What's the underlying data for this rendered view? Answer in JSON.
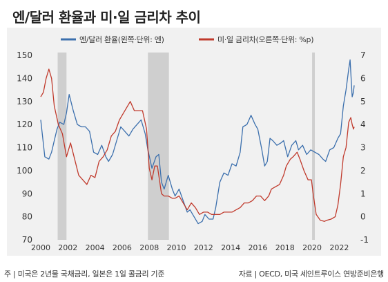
{
  "title": "엔/달러 환율과 미·일 금리차 추이",
  "footer": {
    "note": "주 | 미국은 2년물 국채금리, 일본은 1일 콜금리 기준",
    "source": "자료 | OECD, 미국 세인트루이스 연방준비은행"
  },
  "chart_data": {
    "type": "line",
    "legend_placement": "top",
    "xlabel": "",
    "grid": false,
    "x_ticks": [
      "2000",
      "2002",
      "2004",
      "2006",
      "2008",
      "2010",
      "2012",
      "2014",
      "2016",
      "2018",
      "2020",
      "2022"
    ],
    "x_range": [
      1999.9,
      2023.1
    ],
    "y_left": {
      "ticks": [
        "150",
        "140",
        "130",
        "120",
        "110",
        "100",
        "90",
        "80",
        "70"
      ],
      "range": [
        70,
        150
      ]
    },
    "y_right": {
      "ticks": [
        "7",
        "6",
        "5",
        "4",
        "3",
        "2",
        "1",
        "0",
        "-1"
      ],
      "range": [
        -1,
        7
      ]
    },
    "recessions": [
      [
        2001.25,
        2001.9
      ],
      [
        2007.9,
        2009.45
      ],
      [
        2020.0,
        2020.2
      ]
    ],
    "series": [
      {
        "name": "엔/달러 환율(왼쪽·단위: 엔)",
        "axis": "left",
        "color": "#3b6fad",
        "points": [
          [
            2000.0,
            122
          ],
          [
            2000.3,
            106
          ],
          [
            2000.6,
            105
          ],
          [
            2000.8,
            108
          ],
          [
            2001.0,
            113
          ],
          [
            2001.2,
            118
          ],
          [
            2001.4,
            121
          ],
          [
            2001.7,
            120
          ],
          [
            2001.9,
            125
          ],
          [
            2002.1,
            133
          ],
          [
            2002.4,
            126
          ],
          [
            2002.7,
            120
          ],
          [
            2003.0,
            119
          ],
          [
            2003.3,
            119
          ],
          [
            2003.6,
            117
          ],
          [
            2003.9,
            108
          ],
          [
            2004.2,
            107
          ],
          [
            2004.5,
            111
          ],
          [
            2004.8,
            106
          ],
          [
            2005.0,
            104
          ],
          [
            2005.3,
            107
          ],
          [
            2005.6,
            113
          ],
          [
            2005.9,
            119
          ],
          [
            2006.2,
            117
          ],
          [
            2006.5,
            115
          ],
          [
            2006.8,
            118
          ],
          [
            2007.1,
            120
          ],
          [
            2007.4,
            122
          ],
          [
            2007.7,
            116
          ],
          [
            2007.9,
            109
          ],
          [
            2008.2,
            101
          ],
          [
            2008.5,
            106
          ],
          [
            2008.7,
            107
          ],
          [
            2008.9,
            95
          ],
          [
            2009.1,
            92
          ],
          [
            2009.4,
            98
          ],
          [
            2009.7,
            92
          ],
          [
            2009.9,
            89
          ],
          [
            2010.2,
            92
          ],
          [
            2010.5,
            87
          ],
          [
            2010.8,
            82
          ],
          [
            2011.0,
            83
          ],
          [
            2011.3,
            80
          ],
          [
            2011.6,
            77
          ],
          [
            2011.9,
            78
          ],
          [
            2012.1,
            81
          ],
          [
            2012.4,
            79
          ],
          [
            2012.7,
            79
          ],
          [
            2012.9,
            84
          ],
          [
            2013.2,
            95
          ],
          [
            2013.5,
            99
          ],
          [
            2013.8,
            98
          ],
          [
            2014.1,
            103
          ],
          [
            2014.4,
            102
          ],
          [
            2014.7,
            108
          ],
          [
            2014.9,
            119
          ],
          [
            2015.2,
            120
          ],
          [
            2015.5,
            124
          ],
          [
            2015.8,
            120
          ],
          [
            2016.0,
            118
          ],
          [
            2016.3,
            109
          ],
          [
            2016.5,
            102
          ],
          [
            2016.7,
            104
          ],
          [
            2016.9,
            114
          ],
          [
            2017.1,
            113
          ],
          [
            2017.4,
            111
          ],
          [
            2017.7,
            112
          ],
          [
            2017.9,
            113
          ],
          [
            2018.2,
            106
          ],
          [
            2018.5,
            111
          ],
          [
            2018.8,
            113
          ],
          [
            2019.0,
            109
          ],
          [
            2019.3,
            111
          ],
          [
            2019.6,
            107
          ],
          [
            2019.9,
            109
          ],
          [
            2020.2,
            108
          ],
          [
            2020.5,
            107
          ],
          [
            2020.8,
            105
          ],
          [
            2021.0,
            104
          ],
          [
            2021.3,
            109
          ],
          [
            2021.6,
            110
          ],
          [
            2021.9,
            114
          ],
          [
            2022.1,
            116
          ],
          [
            2022.3,
            128
          ],
          [
            2022.5,
            135
          ],
          [
            2022.7,
            144
          ],
          [
            2022.8,
            148
          ],
          [
            2022.95,
            132
          ],
          [
            2023.05,
            134
          ],
          [
            2023.1,
            137
          ]
        ]
      },
      {
        "name": "미·일 금리차(오른쪽·단위: %p)",
        "axis": "right",
        "color": "#c0392b",
        "points": [
          [
            2000.0,
            5.2
          ],
          [
            2000.2,
            5.4
          ],
          [
            2000.4,
            6.0
          ],
          [
            2000.6,
            6.4
          ],
          [
            2000.8,
            6.0
          ],
          [
            2001.0,
            4.8
          ],
          [
            2001.3,
            4.0
          ],
          [
            2001.6,
            3.6
          ],
          [
            2001.9,
            2.6
          ],
          [
            2002.2,
            3.2
          ],
          [
            2002.5,
            2.5
          ],
          [
            2002.8,
            1.8
          ],
          [
            2003.1,
            1.6
          ],
          [
            2003.4,
            1.4
          ],
          [
            2003.7,
            1.8
          ],
          [
            2004.0,
            1.7
          ],
          [
            2004.3,
            2.4
          ],
          [
            2004.6,
            2.6
          ],
          [
            2004.9,
            2.9
          ],
          [
            2005.2,
            3.5
          ],
          [
            2005.5,
            3.7
          ],
          [
            2005.8,
            4.2
          ],
          [
            2006.1,
            4.5
          ],
          [
            2006.4,
            4.8
          ],
          [
            2006.6,
            5.0
          ],
          [
            2006.9,
            4.6
          ],
          [
            2007.2,
            4.6
          ],
          [
            2007.5,
            4.6
          ],
          [
            2007.8,
            3.8
          ],
          [
            2008.0,
            2.1
          ],
          [
            2008.2,
            1.6
          ],
          [
            2008.4,
            2.2
          ],
          [
            2008.6,
            2.2
          ],
          [
            2008.9,
            1.0
          ],
          [
            2009.1,
            0.9
          ],
          [
            2009.4,
            0.9
          ],
          [
            2009.7,
            0.8
          ],
          [
            2009.9,
            0.8
          ],
          [
            2010.2,
            0.9
          ],
          [
            2010.5,
            0.6
          ],
          [
            2010.8,
            0.3
          ],
          [
            2011.1,
            0.6
          ],
          [
            2011.4,
            0.4
          ],
          [
            2011.7,
            0.1
          ],
          [
            2012.0,
            0.2
          ],
          [
            2012.3,
            0.2
          ],
          [
            2012.6,
            0.1
          ],
          [
            2012.9,
            0.1
          ],
          [
            2013.2,
            0.1
          ],
          [
            2013.5,
            0.2
          ],
          [
            2013.8,
            0.2
          ],
          [
            2014.1,
            0.2
          ],
          [
            2014.4,
            0.3
          ],
          [
            2014.7,
            0.4
          ],
          [
            2015.0,
            0.6
          ],
          [
            2015.3,
            0.6
          ],
          [
            2015.6,
            0.7
          ],
          [
            2015.9,
            0.9
          ],
          [
            2016.2,
            0.9
          ],
          [
            2016.5,
            0.7
          ],
          [
            2016.8,
            0.9
          ],
          [
            2017.0,
            1.2
          ],
          [
            2017.3,
            1.3
          ],
          [
            2017.6,
            1.4
          ],
          [
            2017.9,
            1.8
          ],
          [
            2018.1,
            2.2
          ],
          [
            2018.4,
            2.5
          ],
          [
            2018.6,
            2.6
          ],
          [
            2018.9,
            2.8
          ],
          [
            2019.1,
            2.5
          ],
          [
            2019.4,
            2.0
          ],
          [
            2019.7,
            1.6
          ],
          [
            2019.95,
            1.6
          ],
          [
            2020.1,
            0.9
          ],
          [
            2020.3,
            0.1
          ],
          [
            2020.6,
            -0.15
          ],
          [
            2020.9,
            -0.2
          ],
          [
            2021.1,
            -0.15
          ],
          [
            2021.4,
            -0.1
          ],
          [
            2021.7,
            0.0
          ],
          [
            2021.9,
            0.5
          ],
          [
            2022.1,
            1.4
          ],
          [
            2022.3,
            2.6
          ],
          [
            2022.5,
            3.0
          ],
          [
            2022.7,
            4.1
          ],
          [
            2022.85,
            4.3
          ],
          [
            2022.95,
            4.0
          ],
          [
            2023.05,
            3.8
          ],
          [
            2023.1,
            3.9
          ]
        ]
      }
    ]
  }
}
